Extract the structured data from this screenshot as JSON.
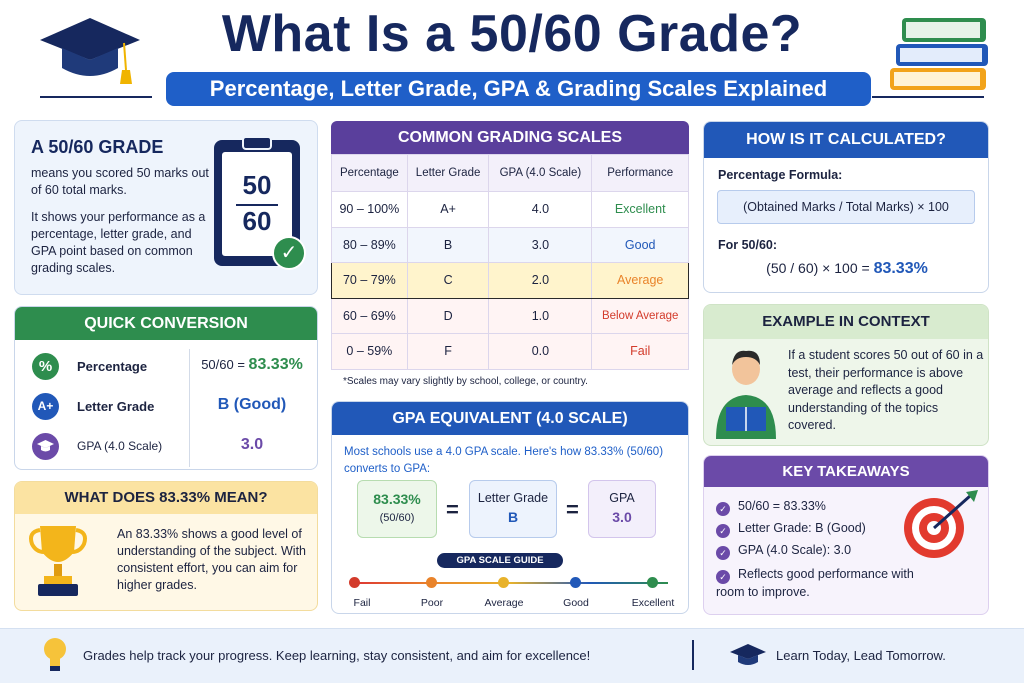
{
  "header": {
    "title": "What Is a 50/60 Grade?",
    "subtitle": "Percentage, Letter Grade, GPA & Grading Scales Explained"
  },
  "intro": {
    "heading": "A 50/60 GRADE",
    "para1": "means you scored 50 marks out of 60 total marks.",
    "para2": "It shows your performance as a percentage, letter grade, and GPA point based on common grading scales.",
    "clipboard_top": "50",
    "clipboard_bottom": "60"
  },
  "quick": {
    "heading": "QUICK CONVERSION",
    "rows": [
      {
        "icon": "%",
        "label": "Percentage",
        "prefix": "50/60 = ",
        "value": "83.33%",
        "color": "#2e8d4e"
      },
      {
        "icon": "A+",
        "label": "Letter Grade",
        "prefix": "",
        "value": "B (Good)",
        "color": "#2158b8"
      },
      {
        "icon": "cap",
        "label": "GPA (4.0 Scale)",
        "prefix": "",
        "value": "3.0",
        "color": "#6b4aa8"
      }
    ]
  },
  "mean": {
    "heading": "WHAT DOES 83.33% MEAN?",
    "text": "An 83.33% shows a good level of understanding of the subject. With consistent effort, you can aim for higher grades."
  },
  "scales": {
    "heading": "COMMON GRADING SCALES",
    "columns": [
      "Percentage",
      "Letter Grade",
      "GPA (4.0 Scale)",
      "Performance"
    ],
    "rows": [
      [
        "90 – 100%",
        "A+",
        "4.0",
        "Excellent"
      ],
      [
        "80 – 89%",
        "B",
        "3.0",
        "Good"
      ],
      [
        "70 – 79%",
        "C",
        "2.0",
        "Average"
      ],
      [
        "60 – 69%",
        "D",
        "1.0",
        "Below Average"
      ],
      [
        "0 – 59%",
        "F",
        "0.0",
        "Fail"
      ]
    ],
    "performance_colors": [
      "#2e8d4e",
      "#2158b8",
      "#e9832a",
      "#d33b2b",
      "#d33b2b"
    ],
    "note": "*Scales may vary slightly by school, college, or country."
  },
  "gpa": {
    "heading": "GPA EQUIVALENT (4.0 SCALE)",
    "intro": "Most schools use a 4.0 GPA scale. Here's how 83.33% (50/60) converts to GPA:",
    "box1_value": "83.33%",
    "box1_sub": "(50/60)",
    "box2_label": "Letter Grade",
    "box2_value": "B",
    "box3_label": "GPA",
    "box3_value": "3.0",
    "equals": "=",
    "guide_title": "GPA SCALE GUIDE",
    "guide_points": [
      "0",
      "1.0",
      "2.0",
      "3.0",
      "4.0"
    ],
    "guide_labels": [
      "Fail",
      "Poor",
      "Average",
      "Good",
      "Excellent"
    ]
  },
  "calc": {
    "heading": "HOW IS IT CALCULATED?",
    "formula_label": "Percentage Formula:",
    "formula": "(Obtained Marks / Total Marks) × 100",
    "for_label": "For 50/60:",
    "result_expr": "(50 / 60) × 100 = ",
    "result_value": "83.33%"
  },
  "example": {
    "heading": "EXAMPLE IN CONTEXT",
    "text": "If a student scores 50 out of 60 in a test, their performance is above average and reflects a good understanding of the topics covered."
  },
  "keys": {
    "heading": "KEY TAKEAWAYS",
    "items": [
      "50/60 = 83.33%",
      "Letter Grade: B (Good)",
      "GPA (4.0 Scale): 3.0",
      "Reflects good performance with room to improve."
    ]
  },
  "footer": {
    "left": "Grades help track your progress. Keep learning, stay consistent, and aim for excellence!",
    "right": "Learn Today, Lead Tomorrow."
  }
}
